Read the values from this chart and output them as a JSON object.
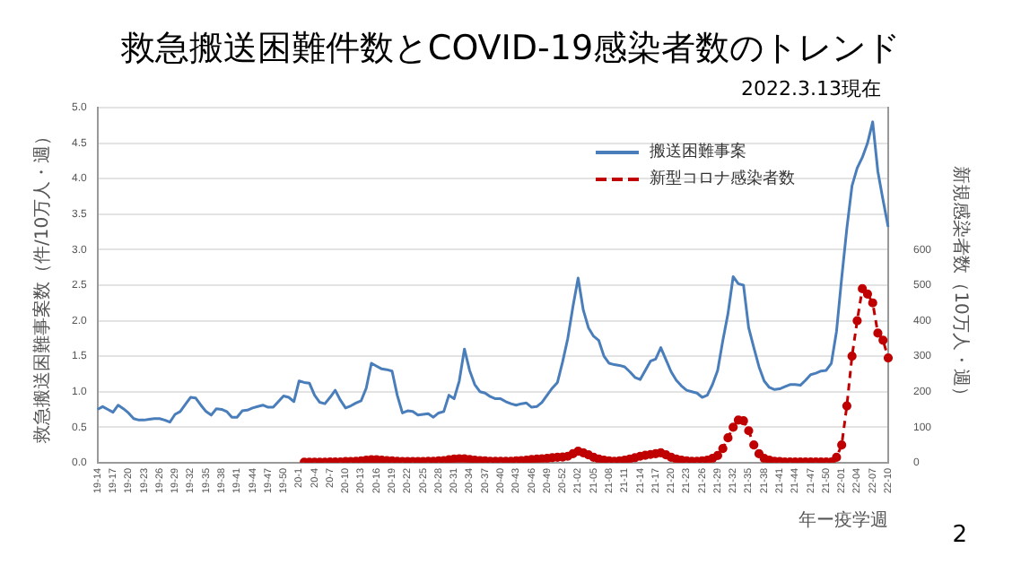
{
  "chart_data": {
    "type": "line",
    "title": "救急搬送困難件数とCOVID-19感染者数のトレンド",
    "ylabel": "救急搬送困難事案数（件/10万人・週）",
    "y2label": "新規感染者数（10万人・週）",
    "xlabel": "年ー疫学週",
    "annotations": [
      "2022.3.13現在",
      "2"
    ],
    "categories": [
      "19-14",
      null,
      null,
      "19-17",
      null,
      null,
      "19-20",
      null,
      null,
      "19-23",
      null,
      null,
      "19-26",
      null,
      null,
      "19-29",
      null,
      null,
      "19-32",
      null,
      null,
      "19-35",
      null,
      null,
      "19-38",
      null,
      null,
      "19-41",
      null,
      null,
      "19-44",
      null,
      null,
      "19-47",
      null,
      null,
      "19-50",
      null,
      null,
      "20-1",
      null,
      null,
      "20-4",
      null,
      null,
      "20-7",
      null,
      null,
      "20-10",
      null,
      null,
      "20-13",
      null,
      null,
      "20-16",
      null,
      null,
      "20-19",
      null,
      null,
      "20-22",
      null,
      null,
      "20-25",
      null,
      null,
      "20-28",
      null,
      null,
      "20-31",
      null,
      null,
      "20-34",
      null,
      null,
      "20-37",
      null,
      null,
      "20-40",
      null,
      null,
      "20-43",
      null,
      null,
      "20-46",
      null,
      null,
      "20-49",
      null,
      null,
      "20-52",
      null,
      null,
      "21-02",
      null,
      null,
      "21-05",
      null,
      null,
      "21-08",
      null,
      null,
      "21-11",
      null,
      null,
      "21-14",
      null,
      null,
      "21-17",
      null,
      null,
      "21-20",
      null,
      null,
      "21-23",
      null,
      null,
      "21-26",
      null,
      null,
      "21-29",
      null,
      null,
      "21-32",
      null,
      null,
      "21-35",
      null,
      null,
      "21-38",
      null,
      null,
      "21-41",
      null,
      null,
      "21-44",
      null,
      null,
      "21-47",
      null,
      null,
      "21-50",
      null,
      null,
      "22-01",
      null,
      null,
      "22-04",
      null,
      null,
      "22-07",
      null,
      null,
      "22-10"
    ],
    "series": [
      {
        "name": "搬送困難事案",
        "color": "#4a7ebb",
        "marker": "none",
        "line_style": "solid",
        "values": [
          0.75,
          0.79,
          0.75,
          0.71,
          0.81,
          0.76,
          0.7,
          0.62,
          0.6,
          0.6,
          0.61,
          0.62,
          0.62,
          0.6,
          0.57,
          0.68,
          0.72,
          0.82,
          0.92,
          0.91,
          0.81,
          0.72,
          0.67,
          0.76,
          0.75,
          0.72,
          0.64,
          0.64,
          0.73,
          0.74,
          0.77,
          0.79,
          0.81,
          0.78,
          0.78,
          0.86,
          0.94,
          0.92,
          0.86,
          1.15,
          1.13,
          1.12,
          0.95,
          0.85,
          0.83,
          0.92,
          1.02,
          0.88,
          0.77,
          0.8,
          0.84,
          0.87,
          1.05,
          1.4,
          1.36,
          1.32,
          1.31,
          1.29,
          0.95,
          0.7,
          0.73,
          0.72,
          0.67,
          0.68,
          0.69,
          0.64,
          0.7,
          0.72,
          0.95,
          0.9,
          1.15,
          1.6,
          1.3,
          1.1,
          1.0,
          0.98,
          0.93,
          0.9,
          0.9,
          0.86,
          0.83,
          0.81,
          0.83,
          0.84,
          0.78,
          0.79,
          0.85,
          0.95,
          1.05,
          1.13,
          1.42,
          1.75,
          2.2,
          2.6,
          2.15,
          1.9,
          1.78,
          1.72,
          1.5,
          1.4,
          1.38,
          1.37,
          1.35,
          1.28,
          1.2,
          1.17,
          1.3,
          1.43,
          1.46,
          1.62,
          1.45,
          1.28,
          1.16,
          1.08,
          1.02,
          1.0,
          0.98,
          0.92,
          0.95,
          1.1,
          1.3,
          1.72,
          2.1,
          2.62,
          2.52,
          2.5,
          1.9,
          1.62,
          1.35,
          1.15,
          1.06,
          1.03,
          1.04,
          1.07,
          1.1,
          1.1,
          1.09,
          1.16,
          1.24,
          1.26,
          1.29,
          1.3,
          1.4,
          1.85,
          2.6,
          3.3,
          3.9,
          4.15,
          4.3,
          4.5,
          4.8,
          4.1,
          3.7,
          3.32
        ]
      },
      {
        "name": "新型コロナ感染者数",
        "color": "#c00000",
        "axis": "y2",
        "marker": "circle",
        "line_style": "dashed",
        "values": [
          null,
          null,
          null,
          null,
          null,
          null,
          null,
          null,
          null,
          null,
          null,
          null,
          null,
          null,
          null,
          null,
          null,
          null,
          null,
          null,
          null,
          null,
          null,
          null,
          null,
          null,
          null,
          null,
          null,
          null,
          null,
          null,
          null,
          null,
          null,
          null,
          null,
          null,
          null,
          null,
          1,
          1,
          1,
          1,
          1,
          2,
          2,
          2,
          3,
          3,
          4,
          5,
          7,
          8,
          8,
          7,
          6,
          5,
          4,
          3,
          3,
          3,
          3,
          3,
          4,
          4,
          5,
          6,
          8,
          10,
          11,
          11,
          9,
          7,
          6,
          5,
          4,
          4,
          4,
          4,
          4,
          5,
          6,
          7,
          9,
          10,
          11,
          12,
          14,
          15,
          16,
          18,
          25,
          32,
          28,
          22,
          15,
          10,
          7,
          5,
          4,
          5,
          7,
          10,
          14,
          18,
          21,
          23,
          25,
          28,
          22,
          15,
          10,
          7,
          5,
          4,
          4,
          5,
          7,
          12,
          20,
          40,
          70,
          100,
          120,
          118,
          90,
          50,
          25,
          12,
          7,
          4,
          3,
          2,
          2,
          2,
          2,
          2,
          2,
          2,
          2,
          2,
          2,
          15,
          50,
          160,
          300,
          400,
          490,
          475,
          450,
          365,
          345,
          295
        ]
      }
    ],
    "ylim": [
      0,
      5
    ],
    "yticks": [
      {
        "value": 0,
        "label": "0.0"
      },
      0.5,
      {
        "value": 1,
        "label": "1.0"
      },
      1.5,
      {
        "value": 2,
        "label": "2.0"
      },
      2.5,
      {
        "value": 3,
        "label": "3.0"
      },
      3.5,
      {
        "value": 4,
        "label": "4.0"
      },
      4.5,
      {
        "value": 5,
        "label": "5.0"
      }
    ],
    "y2lim": [
      0,
      1000
    ],
    "y2ticks": [
      0,
      100,
      200,
      300,
      400,
      500,
      600
    ],
    "grid": "y",
    "legend": "top right"
  }
}
